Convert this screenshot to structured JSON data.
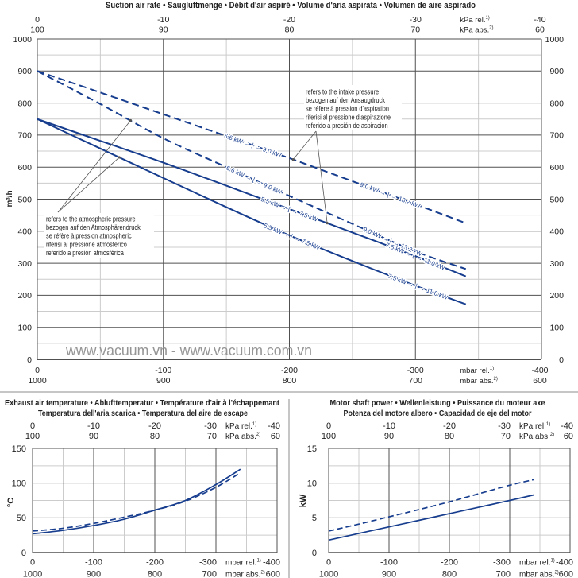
{
  "colors": {
    "series": "#173d8e",
    "grid_major": "#505050",
    "grid_minor": "#cccccc",
    "text": "#222222",
    "annotation": "#555555",
    "watermark": "#959595",
    "divider": "#8c8c8c"
  },
  "watermark": "www.vacuum.vn - www.vacuum.com.vn",
  "chart_data": [
    {
      "type": "line",
      "title": "Suction air rate • Saugluftmenge • Débit d'air aspiré • Volume d'aria aspirata • Volumen de aire aspirado",
      "xlabel": "mbar rel.",
      "ylabel": "m³/h",
      "xlim": [
        0,
        -400
      ],
      "ylim": [
        0,
        1000
      ],
      "grid": true,
      "x_grid_minor_step": 50,
      "y_grid_minor_step": 50,
      "x_ticks": [
        0,
        -100,
        -200,
        -300,
        -400
      ],
      "x_tick_labels": {
        "top_rel": [
          "0",
          "-10",
          "-20",
          "-30",
          "-40"
        ],
        "top_abs": [
          "100",
          "90",
          "80",
          "70",
          "60"
        ],
        "bottom_rel": [
          "0",
          "-100",
          "-200",
          "-300",
          "-400"
        ],
        "bottom_abs": [
          "1000",
          "900",
          "800",
          "700",
          "600"
        ]
      },
      "x_units": {
        "top_rel": "kPa rel.",
        "top_abs": "kPa abs.",
        "bottom_rel": "mbar rel.",
        "bottom_abs": "mbar abs.",
        "rel_note": "1)",
        "abs_note": "2)"
      },
      "y_ticks": [
        0,
        100,
        200,
        300,
        400,
        500,
        600,
        700,
        800,
        900,
        1000
      ],
      "y_tick_labels": [
        "0",
        "100",
        "200",
        "300",
        "400",
        "500",
        "600",
        "700",
        "800",
        "900",
        "1000"
      ],
      "y_axis_right": true,
      "x": [
        0,
        -50,
        -100,
        -150,
        -200,
        -250,
        -300,
        -340
      ],
      "series": [
        {
          "name": "Dashed – refers to intake pressure",
          "line": "dashed",
          "reference": "intake pressure",
          "values": [
            900,
            833,
            765,
            697,
            628,
            556,
            484,
            425
          ]
        },
        {
          "name": "Dashed – refers to atmospheric pressure",
          "line": "dashed",
          "reference": "atmospheric pressure",
          "values": [
            900,
            797,
            690,
            600,
            510,
            423,
            337,
            282
          ]
        },
        {
          "name": "Solid – refers to intake pressure",
          "line": "solid",
          "reference": "intake pressure",
          "values": [
            750,
            682,
            614,
            542,
            469,
            396,
            322,
            259
          ]
        },
        {
          "name": "Solid – refers to atmospheric pressure",
          "line": "solid",
          "reference": "atmospheric pressure",
          "values": [
            750,
            658,
            566,
            475,
            387,
            307,
            230,
            172
          ]
        }
      ],
      "power_labels": [
        {
          "series": 0,
          "x": -171,
          "label": "6.6 kW → ⌊ → 9.0 kW"
        },
        {
          "series": 0,
          "x": -280,
          "label": "9.0 kW → ⌊ → 13.2 kW"
        },
        {
          "series": 1,
          "x": -172,
          "label": "6.6 kW → ⌊ → 9.0 kW"
        },
        {
          "series": 1,
          "x": -282,
          "label": "9.0 kW →  ⌊ → 13.2 kW"
        },
        {
          "series": 2,
          "x": -200,
          "label": "5.5 kW → ⌊ → 7.5 kW"
        },
        {
          "series": 2,
          "x": -300,
          "label": "7.5 kW → ⌊ → 11.0 kW"
        },
        {
          "series": 3,
          "x": -202,
          "label": "5.5 kW → ⌊ → 7.5 kW"
        },
        {
          "series": 3,
          "x": -302,
          "label": "7.5 kW → ⌊ → 11.0 kW"
        }
      ],
      "annotations": [
        {
          "lines": [
            "refers to the intake pressure",
            "bezogen auf den Ansaugdruck",
            "se réfère à pression d'aspiration",
            "riferisi al pressione d'aspirazione",
            "referido a presión de aspiracion"
          ],
          "targets": [
            {
              "series": 0,
              "x": -203
            },
            {
              "series": 2,
              "x": -230
            }
          ]
        },
        {
          "lines": [
            "refers to the atmospheric pressure",
            "bezogen auf den Atmosphärendruck",
            "se réfère à pression atmospheric",
            "riferisi al pressione atmosferico",
            "referido a presión atmosférica"
          ],
          "targets": [
            {
              "series": 1,
              "x": -74
            },
            {
              "series": 3,
              "x": -65
            }
          ]
        }
      ]
    },
    {
      "type": "line",
      "title_lines": [
        "Exhaust air temperature • Ablufttemperatur • Température d'air à l'échappemant",
        "Temperatura dell'aria scarica • Temperatura del aire de escape"
      ],
      "xlabel": "mbar rel.",
      "ylabel": "°C",
      "xlim": [
        0,
        -400
      ],
      "ylim": [
        0,
        150
      ],
      "grid": true,
      "x_grid_minor_step": 50,
      "y_grid_minor_step": 25,
      "x_ticks": [
        0,
        -100,
        -200,
        -300,
        -400
      ],
      "x_tick_labels": {
        "top_rel": [
          "0",
          "-10",
          "-20",
          "-30",
          "-40"
        ],
        "top_abs": [
          "100",
          "90",
          "80",
          "70",
          "60"
        ],
        "bottom_rel": [
          "0",
          "-100",
          "-200",
          "-300",
          "-400"
        ],
        "bottom_abs": [
          "1000",
          "900",
          "800",
          "700",
          "600"
        ]
      },
      "x_units": {
        "top_rel": "kPa rel.",
        "top_abs": "kPa abs.",
        "bottom_rel": "mbar rel.",
        "bottom_abs": "mbar abs.",
        "rel_note": "1)",
        "abs_note": "2)"
      },
      "y_ticks": [
        0,
        50,
        100,
        150
      ],
      "y_tick_labels": [
        "0",
        "50",
        "100",
        "150"
      ],
      "y_axis_right": false,
      "x": [
        0,
        -50,
        -100,
        -150,
        -200,
        -250,
        -300,
        -340
      ],
      "series": [
        {
          "name": "Solid",
          "line": "solid",
          "values": [
            27,
            32,
            39,
            48,
            61,
            75,
            98,
            120
          ]
        },
        {
          "name": "Dashed",
          "line": "dashed",
          "values": [
            31,
            35,
            42,
            51,
            61,
            74,
            94,
            115
          ]
        }
      ]
    },
    {
      "type": "line",
      "title_lines": [
        "Motor shaft power • Wellenleistung • Puissance du moteur axe",
        "Potenza del motore albero • Capacidad de eje del motor"
      ],
      "xlabel": "mbar rel.",
      "ylabel": "kW",
      "xlim": [
        0,
        -400
      ],
      "ylim": [
        0,
        15
      ],
      "grid": true,
      "x_grid_minor_step": 50,
      "y_grid_minor_step": 2.5,
      "x_ticks": [
        0,
        -100,
        -200,
        -300,
        -400
      ],
      "x_tick_labels": {
        "top_rel": [
          "0",
          "-10",
          "-20",
          "-30",
          "-40"
        ],
        "top_abs": [
          "100",
          "90",
          "80",
          "70",
          "60"
        ],
        "bottom_rel": [
          "0",
          "-100",
          "-200",
          "-300",
          "-400"
        ],
        "bottom_abs": [
          "1000",
          "900",
          "800",
          "700",
          "600"
        ]
      },
      "x_units": {
        "top_rel": "kPa rel.",
        "top_abs": "kPa abs.",
        "bottom_rel": "mbar rel.",
        "bottom_abs": "mbar abs.",
        "rel_note": "1)",
        "abs_note": "2)"
      },
      "y_ticks": [
        0,
        5,
        10,
        15
      ],
      "y_tick_labels": [
        "0",
        "5",
        "10",
        "15"
      ],
      "y_axis_right": false,
      "x": [
        0,
        -50,
        -100,
        -150,
        -200,
        -250,
        -300,
        -340
      ],
      "series": [
        {
          "name": "Solid",
          "line": "solid",
          "values": [
            1.8,
            2.75,
            3.7,
            4.65,
            5.6,
            6.55,
            7.5,
            8.3
          ]
        },
        {
          "name": "Dashed",
          "line": "dashed",
          "values": [
            3.1,
            4.1,
            5.15,
            6.2,
            7.3,
            8.5,
            9.7,
            10.5
          ]
        }
      ]
    }
  ]
}
